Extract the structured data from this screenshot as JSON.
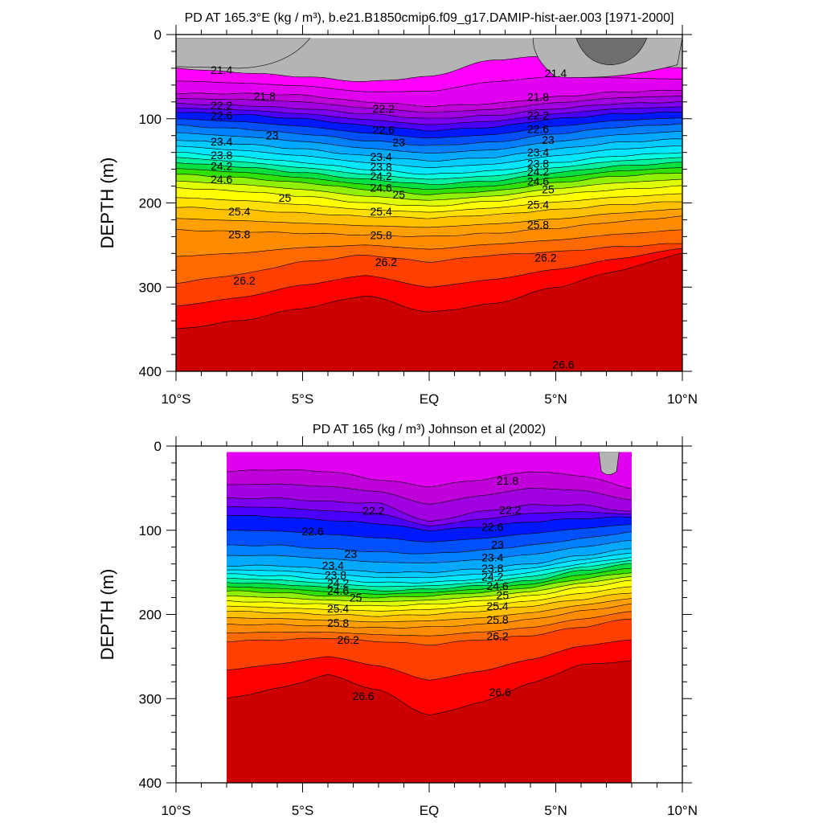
{
  "chart_data": [
    {
      "type": "contour",
      "title": "PD AT 165.3°E (kg / m³), b.e21.B1850cmip6.f09_g17.DAMIP-hist-aer.003 [1971-2000]",
      "ylabel": "DEPTH (m)",
      "xlabel": "",
      "xlim": [
        -10,
        10
      ],
      "ylim": [
        400,
        0
      ],
      "x_ticks": [
        -10,
        -5,
        0,
        5,
        10
      ],
      "x_tick_labels": [
        "10°S",
        "5°S",
        "EQ",
        "5°N",
        "10°N"
      ],
      "y_ticks": [
        0,
        100,
        200,
        300,
        400
      ],
      "y_tick_labels": [
        "0",
        "100",
        "200",
        "300",
        "400"
      ],
      "data_x_range": [
        -10,
        10
      ],
      "data_top_depth": 4,
      "contour_levels": [
        21.4,
        21.6,
        21.8,
        22.0,
        22.2,
        22.4,
        22.6,
        22.8,
        23.0,
        23.2,
        23.4,
        23.6,
        23.8,
        24.0,
        24.2,
        24.4,
        24.6,
        24.8,
        25.0,
        25.2,
        25.4,
        25.6,
        25.8,
        26.0,
        26.2,
        26.4,
        26.6
      ],
      "fill_colors": [
        "#b4b4b4",
        "#ff00ff",
        "#e100f0",
        "#c000d8",
        "#a000e0",
        "#7d00f0",
        "#4a00ff",
        "#0018ff",
        "#0050ff",
        "#0080ff",
        "#00a8ff",
        "#00cbff",
        "#00e6ff",
        "#00ffe0",
        "#00f0a0",
        "#00e040",
        "#30e000",
        "#90f000",
        "#e0ff00",
        "#ffff00",
        "#ffe000",
        "#ffc000",
        "#ffa000",
        "#ff8c00",
        "#ff6a00",
        "#ff4000",
        "#ff0000",
        "#cc0000"
      ],
      "extra_fill": {
        "name": "below 21.2",
        "color": "#6e6e6e",
        "region": "x 5.9 to 8.5, depth 4 to 36"
      },
      "contour_depths": [
        {
          "x": [
            -10,
            -7.5,
            -5,
            -2.5,
            0,
            2.5,
            5,
            7.5,
            10
          ],
          "levels": {
            "21.4": [
              40,
              45,
              50,
              56,
              50,
              30,
              25,
              35,
              40
            ],
            "21.8": [
              70,
              70,
              72,
              80,
              85,
              82,
              74,
              68,
              66
            ],
            "22.2": [
              82,
              84,
              88,
              94,
              100,
              96,
              88,
              82,
              80
            ],
            "22.6": [
              92,
              95,
              100,
              108,
              114,
              110,
              100,
              94,
              92
            ],
            "23.0": [
              108,
              112,
              118,
              126,
              132,
              128,
              118,
              110,
              106
            ],
            "23.4": [
              125,
              130,
              136,
              144,
              150,
              146,
              136,
              128,
              124
            ],
            "23.8": [
              140,
              145,
              152,
              160,
              166,
              162,
              152,
              144,
              140
            ],
            "24.2": [
              152,
              157,
              164,
              172,
              178,
              174,
              164,
              156,
              152
            ],
            "24.6": [
              166,
              170,
              176,
              184,
              190,
              186,
              176,
              168,
              164
            ],
            "25.0": [
              182,
              186,
              192,
              200,
              204,
              198,
              190,
              184,
              180
            ],
            "25.4": [
              205,
              208,
              212,
              216,
              218,
              214,
              208,
              202,
              198
            ],
            "25.8": [
              232,
              234,
              236,
              238,
              240,
              236,
              230,
              222,
              216
            ],
            "26.2": [
              295,
              285,
              270,
              262,
              270,
              262,
              258,
              252,
              248
            ],
            "26.6": [
              350,
              340,
              325,
              310,
              330,
              320,
              300,
              280,
              260
            ]
          }
        }
      ],
      "contour_labels": [
        {
          "text": "21.4",
          "x": -8.2,
          "depth": 42
        },
        {
          "text": "21.8",
          "x": -6.5,
          "depth": 73
        },
        {
          "text": "22.2",
          "x": -8.2,
          "depth": 84
        },
        {
          "text": "22.6",
          "x": -8.2,
          "depth": 96
        },
        {
          "text": "23",
          "x": -6.2,
          "depth": 120
        },
        {
          "text": "23.4",
          "x": -8.2,
          "depth": 127
        },
        {
          "text": "23.8",
          "x": -8.2,
          "depth": 143
        },
        {
          "text": "24.2",
          "x": -8.2,
          "depth": 156
        },
        {
          "text": "24.6",
          "x": -8.2,
          "depth": 172
        },
        {
          "text": "25",
          "x": -5.7,
          "depth": 194
        },
        {
          "text": "25.4",
          "x": -7.5,
          "depth": 210
        },
        {
          "text": "25.8",
          "x": -7.5,
          "depth": 237
        },
        {
          "text": "26.2",
          "x": -7.3,
          "depth": 292
        },
        {
          "text": "22.2",
          "x": -1.8,
          "depth": 88
        },
        {
          "text": "22.6",
          "x": -1.8,
          "depth": 113
        },
        {
          "text": "23",
          "x": -1.2,
          "depth": 128
        },
        {
          "text": "23.4",
          "x": -1.9,
          "depth": 145
        },
        {
          "text": "23.8",
          "x": -1.9,
          "depth": 157
        },
        {
          "text": "24.2",
          "x": -1.9,
          "depth": 168
        },
        {
          "text": "24.6",
          "x": -1.9,
          "depth": 182
        },
        {
          "text": "25",
          "x": -1.2,
          "depth": 190
        },
        {
          "text": "25.4",
          "x": -1.9,
          "depth": 210
        },
        {
          "text": "25.8",
          "x": -1.9,
          "depth": 238
        },
        {
          "text": "26.2",
          "x": -1.7,
          "depth": 270
        },
        {
          "text": "21.4",
          "x": 5.0,
          "depth": 46
        },
        {
          "text": "21.8",
          "x": 4.3,
          "depth": 74
        },
        {
          "text": "22.2",
          "x": 4.3,
          "depth": 96
        },
        {
          "text": "22.6",
          "x": 4.3,
          "depth": 112
        },
        {
          "text": "23",
          "x": 4.7,
          "depth": 125
        },
        {
          "text": "23.4",
          "x": 4.3,
          "depth": 140
        },
        {
          "text": "23.8",
          "x": 4.3,
          "depth": 153
        },
        {
          "text": "24.2",
          "x": 4.3,
          "depth": 163
        },
        {
          "text": "24.6",
          "x": 4.3,
          "depth": 174
        },
        {
          "text": "25",
          "x": 4.7,
          "depth": 184
        },
        {
          "text": "25.4",
          "x": 4.3,
          "depth": 202
        },
        {
          "text": "25.8",
          "x": 4.3,
          "depth": 226
        },
        {
          "text": "26.2",
          "x": 4.6,
          "depth": 265
        },
        {
          "text": "26.6",
          "x": 5.3,
          "depth": 392
        }
      ]
    },
    {
      "type": "contour",
      "title": "PD AT 165 (kg / m³) Johnson et al (2002)",
      "ylabel": "DEPTH (m)",
      "xlabel": "",
      "xlim": [
        -10,
        10
      ],
      "ylim": [
        400,
        0
      ],
      "x_ticks": [
        -10,
        -5,
        0,
        5,
        10
      ],
      "x_tick_labels": [
        "10°S",
        "5°S",
        "EQ",
        "5°N",
        "10°N"
      ],
      "y_ticks": [
        0,
        100,
        200,
        300,
        400
      ],
      "y_tick_labels": [
        "0",
        "100",
        "200",
        "300",
        "400"
      ],
      "data_x_range": [
        -8,
        8
      ],
      "data_top_depth": 7,
      "contour_levels": [
        21.4,
        21.6,
        21.8,
        22.0,
        22.2,
        22.4,
        22.6,
        22.8,
        23.0,
        23.2,
        23.4,
        23.6,
        23.8,
        24.0,
        24.2,
        24.4,
        24.6,
        24.8,
        25.0,
        25.2,
        25.4,
        25.6,
        25.8,
        26.0,
        26.2,
        26.4,
        26.6
      ],
      "fill_colors": [
        "#b4b4b4",
        "#ff00ff",
        "#e100f0",
        "#c000d8",
        "#a000e0",
        "#7d00f0",
        "#4a00ff",
        "#0018ff",
        "#0050ff",
        "#0080ff",
        "#00a8ff",
        "#00cbff",
        "#00e6ff",
        "#00ffe0",
        "#00f0a0",
        "#00e040",
        "#30e000",
        "#90f000",
        "#e0ff00",
        "#ffff00",
        "#ffe000",
        "#ffc000",
        "#ffa000",
        "#ff8c00",
        "#ff6a00",
        "#ff4000",
        "#ff0000",
        "#cc0000"
      ],
      "contour_depths": [
        {
          "x": [
            -8,
            -6,
            -4,
            -2,
            0,
            2,
            4,
            6,
            8
          ],
          "levels": {
            "21.8": [
              30,
              28,
              30,
              40,
              48,
              40,
              30,
              35,
              50
            ],
            "22.2": [
              62,
              62,
              66,
              68,
              90,
              78,
              70,
              70,
              78
            ],
            "22.6": [
              82,
              84,
              88,
              92,
              100,
              96,
              90,
              86,
              84
            ],
            "23.0": [
              118,
              118,
              122,
              126,
              128,
              124,
              118,
              110,
              102
            ],
            "23.4": [
              142,
              142,
              146,
              150,
              150,
              146,
              140,
              130,
              122
            ],
            "23.8": [
              152,
              154,
              158,
              162,
              162,
              158,
              150,
              140,
              132
            ],
            "24.2": [
              162,
              164,
              168,
              172,
              170,
              166,
              160,
              148,
              140
            ],
            "24.6": [
              172,
              174,
              178,
              180,
              178,
              174,
              168,
              158,
              150
            ],
            "25.0": [
              184,
              186,
              188,
              190,
              188,
              184,
              178,
              168,
              160
            ],
            "25.4": [
              196,
              198,
              200,
              202,
              200,
              196,
              190,
              182,
              174
            ],
            "25.8": [
              212,
              212,
              214,
              216,
              215,
              212,
              206,
              196,
              188
            ],
            "26.2": [
              232,
              230,
              228,
              232,
              236,
              230,
              225,
              215,
              205
            ],
            "26.6": [
              300,
              288,
              272,
              290,
              320,
              305,
              282,
              260,
              255
            ]
          }
        }
      ],
      "contour_labels": [
        {
          "text": "21.8",
          "x": 3.1,
          "depth": 41
        },
        {
          "text": "22.2",
          "x": -2.2,
          "depth": 77
        },
        {
          "text": "22.2",
          "x": 3.2,
          "depth": 76
        },
        {
          "text": "22.6",
          "x": -4.6,
          "depth": 101
        },
        {
          "text": "22.6",
          "x": 2.5,
          "depth": 96
        },
        {
          "text": "23",
          "x": -3.1,
          "depth": 128
        },
        {
          "text": "23",
          "x": 2.7,
          "depth": 117
        },
        {
          "text": "23.4",
          "x": -3.8,
          "depth": 142
        },
        {
          "text": "23.4",
          "x": 2.5,
          "depth": 132
        },
        {
          "text": "23.8",
          "x": -3.7,
          "depth": 153
        },
        {
          "text": "23.8",
          "x": 2.5,
          "depth": 145
        },
        {
          "text": "24.2",
          "x": -3.6,
          "depth": 163
        },
        {
          "text": "24.2",
          "x": 2.5,
          "depth": 155
        },
        {
          "text": "24.6",
          "x": -3.6,
          "depth": 172
        },
        {
          "text": "24.6",
          "x": 2.7,
          "depth": 166
        },
        {
          "text": "25",
          "x": -2.9,
          "depth": 180
        },
        {
          "text": "25",
          "x": 2.9,
          "depth": 177
        },
        {
          "text": "25.4",
          "x": -3.6,
          "depth": 193
        },
        {
          "text": "25.4",
          "x": 2.7,
          "depth": 190
        },
        {
          "text": "25.8",
          "x": -3.6,
          "depth": 210
        },
        {
          "text": "25.8",
          "x": 2.7,
          "depth": 206
        },
        {
          "text": "26.2",
          "x": -3.2,
          "depth": 230
        },
        {
          "text": "26.2",
          "x": 2.7,
          "depth": 226
        },
        {
          "text": "26.6",
          "x": -2.6,
          "depth": 297
        },
        {
          "text": "26.6",
          "x": 2.8,
          "depth": 292
        }
      ]
    }
  ]
}
